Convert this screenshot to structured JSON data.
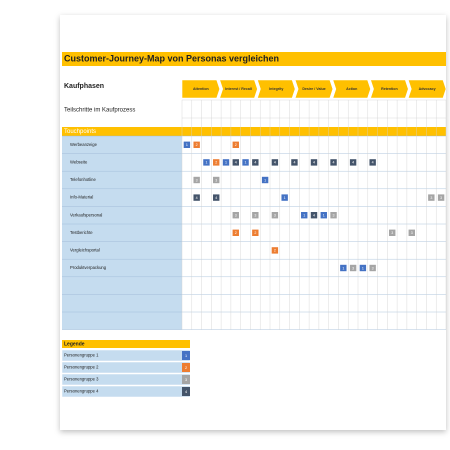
{
  "title": "Customer-Journey-Map von Personas vergleichen",
  "phases": {
    "label": "Kaufphasen",
    "items": [
      "Attention",
      "Interest / Recall",
      "Integrity",
      "Desire / Value",
      "Action",
      "Retention",
      "Advocacy"
    ]
  },
  "substeps_label": "Teilschritte im Kaufprozess",
  "touchpoints": {
    "label": "Touchpoints",
    "rows": [
      {
        "name": "Werbeanzeige",
        "cells": [
          1,
          2,
          null,
          null,
          null,
          2,
          null,
          null,
          null,
          null,
          null,
          null,
          null,
          null,
          null,
          null,
          null,
          null,
          null,
          null,
          null,
          null,
          null,
          null,
          null,
          null,
          null
        ]
      },
      {
        "name": "Webseite",
        "cells": [
          null,
          null,
          1,
          2,
          1,
          4,
          1,
          4,
          null,
          4,
          null,
          4,
          null,
          4,
          null,
          4,
          null,
          4,
          null,
          4,
          null,
          null,
          null,
          null,
          null,
          null,
          null
        ]
      },
      {
        "name": "Telefonhotline",
        "cells": [
          null,
          3,
          null,
          3,
          null,
          null,
          null,
          null,
          1,
          null,
          null,
          null,
          null,
          null,
          null,
          null,
          null,
          null,
          null,
          null,
          null,
          null,
          null,
          null,
          null,
          null,
          null
        ]
      },
      {
        "name": "Info-Material",
        "cells": [
          null,
          4,
          null,
          4,
          null,
          null,
          null,
          null,
          null,
          null,
          1,
          null,
          null,
          null,
          null,
          null,
          null,
          null,
          null,
          null,
          null,
          null,
          null,
          null,
          null,
          3,
          3
        ]
      },
      {
        "name": "Verkaufspersonal",
        "cells": [
          null,
          null,
          null,
          null,
          null,
          3,
          null,
          3,
          null,
          3,
          null,
          null,
          1,
          4,
          1,
          3,
          null,
          null,
          null,
          null,
          null,
          null,
          null,
          null,
          null,
          null,
          null
        ]
      },
      {
        "name": "Testberichte",
        "cells": [
          null,
          null,
          null,
          null,
          null,
          2,
          null,
          2,
          null,
          null,
          null,
          null,
          null,
          null,
          null,
          null,
          null,
          null,
          null,
          null,
          null,
          3,
          null,
          3,
          null,
          null,
          null
        ]
      },
      {
        "name": "Vergleichsportal",
        "cells": [
          null,
          null,
          null,
          null,
          null,
          null,
          null,
          null,
          null,
          2,
          null,
          null,
          null,
          null,
          null,
          null,
          null,
          null,
          null,
          null,
          null,
          null,
          null,
          null,
          null,
          null,
          null
        ]
      },
      {
        "name": "Produktverpackung",
        "cells": [
          null,
          null,
          null,
          null,
          null,
          null,
          null,
          null,
          null,
          null,
          null,
          null,
          null,
          null,
          null,
          null,
          1,
          3,
          1,
          3,
          null,
          null,
          null,
          null,
          null,
          null,
          null
        ]
      }
    ]
  },
  "legend": {
    "title": "Legende",
    "items": [
      {
        "label": "Personengruppe 1",
        "value": 1,
        "color": "#4472c4"
      },
      {
        "label": "Personengruppe 2",
        "value": 2,
        "color": "#ed7d31"
      },
      {
        "label": "Personengruppe 3",
        "value": 3,
        "color": "#a5a5a5"
      },
      {
        "label": "Personengruppe 4",
        "value": 4,
        "color": "#44546a"
      }
    ]
  }
}
